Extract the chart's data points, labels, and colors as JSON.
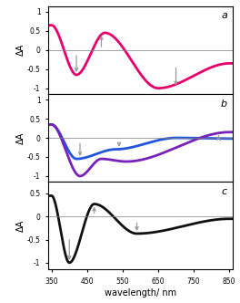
{
  "xlim": [
    340,
    860
  ],
  "xticks": [
    350,
    450,
    550,
    650,
    750,
    850
  ],
  "xlabel": "wavelength/ nm",
  "ylabel": "ΔA",
  "color_a": "#e8006a",
  "color_b_blue": "#2255dd",
  "color_b_violet": "#7722bb",
  "color_c": "#111111",
  "arrow_color": "#999999"
}
